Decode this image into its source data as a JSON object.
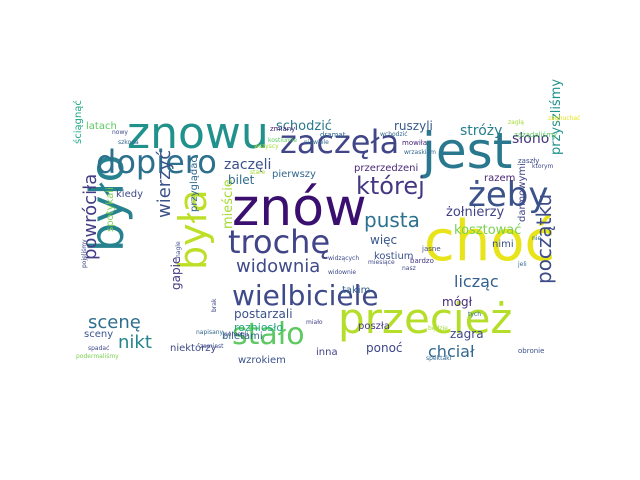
{
  "words": [
    {
      "text": "znów",
      "color": "#3b0f70"
    },
    {
      "text": "choć",
      "color": "#e8e419"
    },
    {
      "text": "jest",
      "color": "#2a788e"
    },
    {
      "text": "było",
      "color": "#26828e"
    },
    {
      "text": "znowu",
      "color": "#21918c"
    },
    {
      "text": "przecież",
      "color": "#b5de2b"
    },
    {
      "text": "była",
      "color": "#bddf26"
    },
    {
      "text": "dopiero",
      "color": "#2d708e"
    },
    {
      "text": "zaczęła",
      "color": "#404688"
    },
    {
      "text": "żeby",
      "color": "#3b528b"
    },
    {
      "text": "trochę",
      "color": "#414487"
    },
    {
      "text": "wielbiciele",
      "color": "#3e4a89"
    },
    {
      "text": "stało",
      "color": "#5ec962"
    },
    {
      "text": "której",
      "color": "#443983"
    },
    {
      "text": "pusta",
      "color": "#2c728e"
    },
    {
      "text": "początku",
      "color": "#3e4c8a"
    },
    {
      "text": "widownia",
      "color": "#3e4a89"
    },
    {
      "text": "wierzyć",
      "color": "#3b528b"
    },
    {
      "text": "powróciła",
      "color": "#433e85"
    },
    {
      "text": "scenę",
      "color": "#2e6e8e"
    },
    {
      "text": "nikt",
      "color": "#25858e"
    },
    {
      "text": "chciał",
      "color": "#31688e"
    },
    {
      "text": "licząc",
      "color": "#355f8d"
    },
    {
      "text": "stróży",
      "color": "#277f8e"
    },
    {
      "text": "słono",
      "color": "#46337f"
    },
    {
      "text": "zaczęli",
      "color": "#3b528b"
    },
    {
      "text": "schodzić",
      "color": "#2a788e"
    },
    {
      "text": "przyszliśmy",
      "color": "#21918c"
    },
    {
      "text": "mieście",
      "color": "#a5db36"
    },
    {
      "text": "żołnierzy",
      "color": "#414487"
    },
    {
      "text": "kosztować",
      "color": "#7ad151"
    },
    {
      "text": "bilet",
      "color": "#2f6c8e"
    },
    {
      "text": "postarzali",
      "color": "#3b528b"
    },
    {
      "text": "ruszyli",
      "color": "#38588c"
    },
    {
      "text": "zagra",
      "color": "#3e4a89"
    },
    {
      "text": "mógł",
      "color": "#472d7b"
    },
    {
      "text": "więc",
      "color": "#39568c"
    },
    {
      "text": "ponoć",
      "color": "#3f4788"
    },
    {
      "text": "gapie",
      "color": "#453882"
    },
    {
      "text": "rozniosło",
      "color": "#22a884"
    },
    {
      "text": "darmowymi",
      "color": "#414487"
    },
    {
      "text": "przerzedzeni",
      "color": "#482878"
    },
    {
      "text": "nimi",
      "color": "#3b528b"
    },
    {
      "text": "kostium",
      "color": "#3b528b"
    },
    {
      "text": "poszła",
      "color": "#453781"
    },
    {
      "text": "takim",
      "color": "#33638d"
    },
    {
      "text": "razem",
      "color": "#482576"
    },
    {
      "text": "pierwszy",
      "color": "#31688e"
    },
    {
      "text": "kiedy",
      "color": "#3e4a89"
    },
    {
      "text": "przyglądać",
      "color": "#31688e"
    },
    {
      "text": "spotykali",
      "color": "#7ad151"
    },
    {
      "text": "niektórzy",
      "color": "#3e4a89"
    },
    {
      "text": "wzrokiem",
      "color": "#3b528b"
    },
    {
      "text": "inna",
      "color": "#414487"
    },
    {
      "text": "sceny",
      "color": "#39568c"
    },
    {
      "text": "biletami",
      "color": "#31688e"
    },
    {
      "text": "latach",
      "color": "#5ec962"
    },
    {
      "text": "ściągnąć",
      "color": "#22a884"
    },
    {
      "text": "zmiany",
      "color": "#482475"
    },
    {
      "text": "dramat",
      "color": "#31688e"
    },
    {
      "text": "bardzo",
      "color": "#443983"
    },
    {
      "text": "jasne",
      "color": "#404688"
    },
    {
      "text": "mowiła",
      "color": "#482878"
    },
    {
      "text": "pojeliśmy",
      "color": "#3e4a89"
    },
    {
      "text": "zaszły",
      "color": "#3e4a89"
    },
    {
      "text": "zażądaliśmy",
      "color": "#5ec962"
    },
    {
      "text": "obronie",
      "color": "#3b528b"
    },
    {
      "text": "podermaliśmy",
      "color": "#7ad151"
    },
    {
      "text": "napisany",
      "color": "#31688e"
    },
    {
      "text": "zaghuchać",
      "color": "#e5e419"
    },
    {
      "text": "nowy",
      "color": "#3e4a89"
    },
    {
      "text": "szkoda",
      "color": "#31688e"
    },
    {
      "text": "ktorym",
      "color": "#3e4a89"
    },
    {
      "text": "spektakl",
      "color": "#31688e"
    },
    {
      "text": "będzie",
      "color": "#a5db36"
    },
    {
      "text": "wchodzić",
      "color": "#31688e"
    },
    {
      "text": "wrzaskiem",
      "color": "#31688e"
    },
    {
      "text": "pomogli",
      "color": "#3e4a89"
    },
    {
      "text": "widownie",
      "color": "#3e4a89"
    },
    {
      "text": "brak",
      "color": "#414487"
    },
    {
      "text": "miało",
      "color": "#414487"
    },
    {
      "text": "zamiast",
      "color": "#3e4a89"
    },
    {
      "text": "spadać",
      "color": "#3e4a89"
    },
    {
      "text": "nagle",
      "color": "#3e4a89"
    },
    {
      "text": "zaglą",
      "color": "#a5db36"
    },
    {
      "text": "jeli",
      "color": "#31688e"
    },
    {
      "text": "nasz",
      "color": "#3e4a89"
    },
    {
      "text": "miesiące",
      "color": "#3e4a89"
    },
    {
      "text": "widzących",
      "color": "#3e4a89"
    },
    {
      "text": "kostiumie",
      "color": "#5ec962"
    },
    {
      "text": "niewiele",
      "color": "#31688e"
    },
    {
      "text": "wszyscy",
      "color": "#a5db36"
    },
    {
      "text": "nie",
      "color": "#31688e"
    },
    {
      "text": "tych",
      "color": "#31688e"
    },
    {
      "text": "stare",
      "color": "#a5db36"
    }
  ]
}
